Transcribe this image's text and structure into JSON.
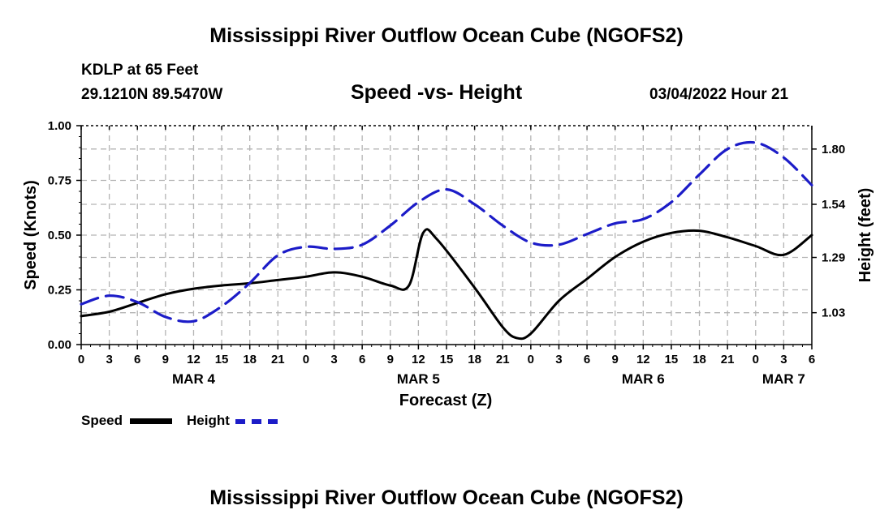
{
  "title": "Mississippi River Outflow Ocean Cube (NGOFS2)",
  "footer_title": "Mississippi River Outflow Ocean Cube (NGOFS2)",
  "station": {
    "name": "KDLP at 65 Feet",
    "coords": "29.1210N  89.5470W"
  },
  "subtitle": "Speed -vs- Height",
  "datetime": "03/04/2022 Hour 21",
  "legend": {
    "speed_label": "Speed",
    "height_label": "Height"
  },
  "colors": {
    "speed": "#000000",
    "height": "#1c1cc8",
    "grid": "#b4b4b4"
  },
  "chart_data": {
    "type": "line",
    "title": "Speed -vs- Height",
    "xlabel": "Forecast (Z)",
    "ylabel": "Speed (Knots)",
    "ylabel_right": "Height (feet)",
    "xlim": [
      0,
      78
    ],
    "ylim": [
      0,
      1.0
    ],
    "ylim_right": [
      0.88,
      1.91
    ],
    "x_ticks": [
      0,
      3,
      6,
      9,
      12,
      15,
      18,
      21,
      24,
      27,
      30,
      33,
      36,
      39,
      42,
      45,
      48,
      51,
      54,
      57,
      60,
      63,
      66,
      69,
      72,
      75,
      78
    ],
    "x_tick_labels": [
      "0",
      "3",
      "6",
      "9",
      "12",
      "15",
      "18",
      "21",
      "0",
      "3",
      "6",
      "9",
      "12",
      "15",
      "18",
      "21",
      "0",
      "3",
      "6",
      "9",
      "12",
      "15",
      "18",
      "21",
      "0",
      "3",
      "6"
    ],
    "day_labels": [
      {
        "label": "MAR 4",
        "x": 12
      },
      {
        "label": "MAR 5",
        "x": 36
      },
      {
        "label": "MAR 6",
        "x": 60
      },
      {
        "label": "MAR 7",
        "x": 75
      }
    ],
    "y_ticks": [
      0.0,
      0.25,
      0.5,
      0.75,
      1.0
    ],
    "y_tick_labels": [
      "0.00",
      "0.25",
      "0.50",
      "0.75",
      "1.00"
    ],
    "y_ticks_right": [
      1.03,
      1.29,
      1.54,
      1.8
    ],
    "y_tick_labels_right": [
      "1.03",
      "1.29",
      "1.54",
      "1.80"
    ],
    "grid": true,
    "series": [
      {
        "name": "Speed",
        "axis": "left",
        "x": [
          0,
          3,
          6,
          9,
          12,
          15,
          18,
          21,
          24,
          27,
          30,
          33,
          35,
          36.5,
          38,
          42,
          45,
          46.5,
          48,
          51,
          54,
          57,
          60,
          63,
          66,
          69,
          72,
          75,
          78
        ],
        "values": [
          0.13,
          0.15,
          0.19,
          0.23,
          0.255,
          0.27,
          0.28,
          0.295,
          0.31,
          0.33,
          0.31,
          0.27,
          0.27,
          0.51,
          0.48,
          0.26,
          0.08,
          0.03,
          0.05,
          0.2,
          0.3,
          0.4,
          0.47,
          0.51,
          0.52,
          0.49,
          0.45,
          0.41,
          0.5
        ]
      },
      {
        "name": "Height",
        "axis": "right",
        "x": [
          0,
          3,
          6,
          9,
          12,
          15,
          18,
          21,
          24,
          27,
          30,
          33,
          36,
          39,
          42,
          45,
          48,
          51,
          54,
          57,
          60,
          63,
          66,
          69,
          72,
          75,
          78
        ],
        "values": [
          1.07,
          1.11,
          1.08,
          1.01,
          0.99,
          1.06,
          1.17,
          1.3,
          1.34,
          1.33,
          1.35,
          1.44,
          1.55,
          1.61,
          1.54,
          1.44,
          1.36,
          1.35,
          1.4,
          1.45,
          1.47,
          1.55,
          1.68,
          1.8,
          1.83,
          1.76,
          1.63
        ]
      }
    ]
  }
}
